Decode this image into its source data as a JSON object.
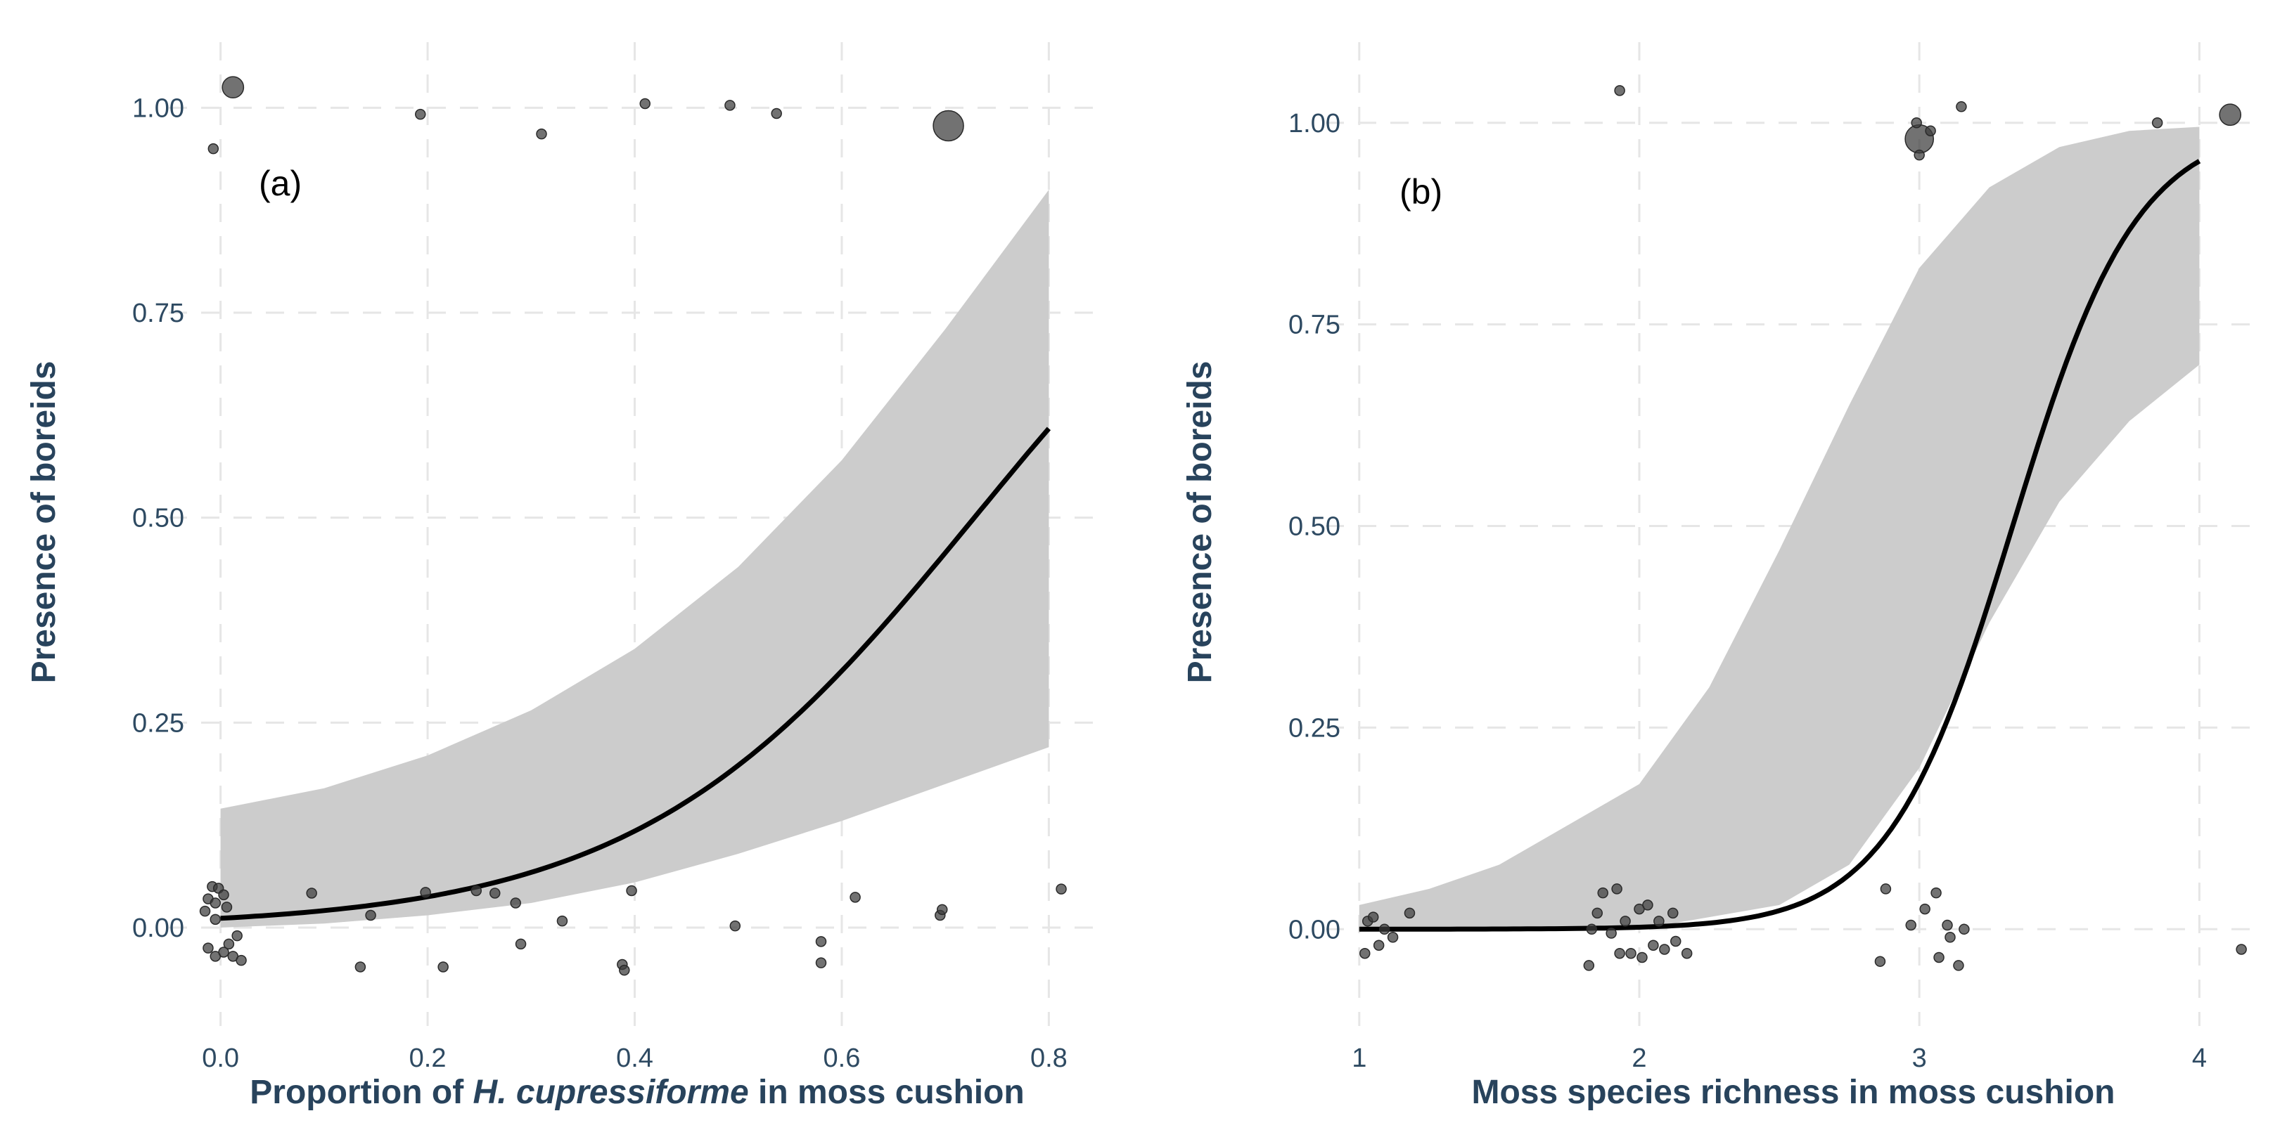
{
  "chart_data": [
    {
      "type": "scatter",
      "panel_label": "(a)",
      "title": "",
      "xlabel_prefix": "Proportion of ",
      "xlabel_species": "H. cupressiforme",
      "xlabel_suffix": " in moss cushion",
      "ylabel": "Presence of boreids",
      "xlim": [
        -0.05,
        0.85
      ],
      "ylim": [
        -0.12,
        1.08
      ],
      "x_ticks": [
        0.0,
        0.2,
        0.4,
        0.6,
        0.8
      ],
      "x_tick_labels": [
        "0.0",
        "0.2",
        "0.4",
        "0.6",
        "0.8"
      ],
      "y_ticks": [
        0,
        0.25,
        0.5,
        0.75,
        1.0
      ],
      "y_tick_labels": [
        "0.00",
        "0.25",
        "0.50",
        "0.75",
        "1.00"
      ],
      "model": "logistic",
      "fit_intercept": -4.47,
      "fit_slope": 6.14,
      "fit_range": [
        0.0,
        0.8
      ],
      "ci_lower": [
        [
          0.0,
          0.0
        ],
        [
          0.1,
          0.005
        ],
        [
          0.2,
          0.015
        ],
        [
          0.3,
          0.03
        ],
        [
          0.4,
          0.055
        ],
        [
          0.5,
          0.09
        ],
        [
          0.6,
          0.13
        ],
        [
          0.7,
          0.175
        ],
        [
          0.8,
          0.22
        ]
      ],
      "ci_upper": [
        [
          0.0,
          0.145
        ],
        [
          0.1,
          0.17
        ],
        [
          0.2,
          0.21
        ],
        [
          0.3,
          0.265
        ],
        [
          0.4,
          0.34
        ],
        [
          0.5,
          0.44
        ],
        [
          0.6,
          0.57
        ],
        [
          0.7,
          0.73
        ],
        [
          0.8,
          0.9
        ]
      ],
      "points": [
        {
          "x": 0.012,
          "y": 1.025,
          "n": 3
        },
        {
          "x": -0.007,
          "y": 0.95,
          "n": 1
        },
        {
          "x": 0.193,
          "y": 0.992,
          "n": 1
        },
        {
          "x": 0.31,
          "y": 0.968,
          "n": 1
        },
        {
          "x": 0.41,
          "y": 1.005,
          "n": 1
        },
        {
          "x": 0.492,
          "y": 1.003,
          "n": 1
        },
        {
          "x": 0.537,
          "y": 0.993,
          "n": 1
        },
        {
          "x": 0.703,
          "y": 0.978,
          "n": 7
        },
        {
          "x": -0.012,
          "y": 0.035,
          "n": 1
        },
        {
          "x": -0.008,
          "y": 0.05,
          "n": 1
        },
        {
          "x": -0.005,
          "y": 0.03,
          "n": 1
        },
        {
          "x": -0.002,
          "y": 0.048,
          "n": 1
        },
        {
          "x": -0.015,
          "y": 0.02,
          "n": 1
        },
        {
          "x": -0.005,
          "y": 0.01,
          "n": 1
        },
        {
          "x": 0.003,
          "y": 0.04,
          "n": 1
        },
        {
          "x": 0.006,
          "y": 0.025,
          "n": 1
        },
        {
          "x": -0.012,
          "y": -0.025,
          "n": 1
        },
        {
          "x": -0.005,
          "y": -0.035,
          "n": 1
        },
        {
          "x": 0.003,
          "y": -0.03,
          "n": 1
        },
        {
          "x": 0.008,
          "y": -0.02,
          "n": 1
        },
        {
          "x": 0.012,
          "y": -0.035,
          "n": 1
        },
        {
          "x": 0.016,
          "y": -0.01,
          "n": 1
        },
        {
          "x": 0.02,
          "y": -0.04,
          "n": 1
        },
        {
          "x": 0.088,
          "y": 0.042,
          "n": 1
        },
        {
          "x": 0.135,
          "y": -0.048,
          "n": 1
        },
        {
          "x": 0.145,
          "y": 0.015,
          "n": 1
        },
        {
          "x": 0.198,
          "y": 0.043,
          "n": 1
        },
        {
          "x": 0.215,
          "y": -0.048,
          "n": 1
        },
        {
          "x": 0.247,
          "y": 0.045,
          "n": 1
        },
        {
          "x": 0.265,
          "y": 0.042,
          "n": 1
        },
        {
          "x": 0.285,
          "y": 0.03,
          "n": 1
        },
        {
          "x": 0.29,
          "y": -0.02,
          "n": 1
        },
        {
          "x": 0.33,
          "y": 0.008,
          "n": 1
        },
        {
          "x": 0.388,
          "y": -0.045,
          "n": 1
        },
        {
          "x": 0.39,
          "y": -0.052,
          "n": 1
        },
        {
          "x": 0.397,
          "y": 0.045,
          "n": 1
        },
        {
          "x": 0.497,
          "y": 0.002,
          "n": 1
        },
        {
          "x": 0.58,
          "y": -0.017,
          "n": 1
        },
        {
          "x": 0.58,
          "y": -0.043,
          "n": 1
        },
        {
          "x": 0.613,
          "y": 0.037,
          "n": 1
        },
        {
          "x": 0.695,
          "y": 0.015,
          "n": 1
        },
        {
          "x": 0.697,
          "y": 0.022,
          "n": 1
        },
        {
          "x": 0.812,
          "y": 0.047,
          "n": 1
        }
      ]
    },
    {
      "type": "scatter",
      "panel_label": "(b)",
      "title": "",
      "xlabel": "Moss species richness in moss cushion",
      "ylabel": "Presence of boreids",
      "xlim": [
        0.88,
        4.22
      ],
      "ylim": [
        -0.12,
        1.1
      ],
      "x_ticks": [
        1,
        2,
        3,
        4
      ],
      "x_tick_labels": [
        "1",
        "2",
        "3",
        "4"
      ],
      "y_ticks": [
        0,
        0.25,
        0.5,
        0.75,
        1.0
      ],
      "y_tick_labels": [
        "0.00",
        "0.25",
        "0.50",
        "0.75",
        "1.00"
      ],
      "model": "logistic",
      "fit_intercept": -15.0,
      "fit_slope": 4.5,
      "fit_range": [
        1.0,
        4.0
      ],
      "ci_lower": [
        [
          1.0,
          0.0
        ],
        [
          1.5,
          0.0
        ],
        [
          2.0,
          0.0
        ],
        [
          2.5,
          0.03
        ],
        [
          2.75,
          0.08
        ],
        [
          3.0,
          0.2
        ],
        [
          3.25,
          0.38
        ],
        [
          3.5,
          0.53
        ],
        [
          3.75,
          0.63
        ],
        [
          4.0,
          0.7
        ]
      ],
      "ci_upper": [
        [
          1.0,
          0.03
        ],
        [
          1.25,
          0.05
        ],
        [
          1.5,
          0.08
        ],
        [
          2.0,
          0.18
        ],
        [
          2.25,
          0.3
        ],
        [
          2.5,
          0.47
        ],
        [
          2.75,
          0.65
        ],
        [
          3.0,
          0.82
        ],
        [
          3.25,
          0.92
        ],
        [
          3.5,
          0.97
        ],
        [
          3.75,
          0.99
        ],
        [
          4.0,
          0.995
        ]
      ],
      "points": [
        {
          "x": 1.93,
          "y": 1.04,
          "n": 1
        },
        {
          "x": 3.0,
          "y": 0.98,
          "n": 6
        },
        {
          "x": 3.0,
          "y": 0.96,
          "n": 1
        },
        {
          "x": 2.99,
          "y": 1.0,
          "n": 1
        },
        {
          "x": 3.04,
          "y": 0.99,
          "n": 1
        },
        {
          "x": 3.15,
          "y": 1.02,
          "n": 1
        },
        {
          "x": 3.85,
          "y": 1.0,
          "n": 1
        },
        {
          "x": 4.11,
          "y": 1.01,
          "n": 3
        },
        {
          "x": 1.02,
          "y": -0.03,
          "n": 1
        },
        {
          "x": 1.03,
          "y": 0.01,
          "n": 1
        },
        {
          "x": 1.05,
          "y": 0.015,
          "n": 1
        },
        {
          "x": 1.07,
          "y": -0.02,
          "n": 1
        },
        {
          "x": 1.09,
          "y": 0.0,
          "n": 1
        },
        {
          "x": 1.12,
          "y": -0.01,
          "n": 1
        },
        {
          "x": 1.18,
          "y": 0.02,
          "n": 1
        },
        {
          "x": 1.82,
          "y": -0.045,
          "n": 1
        },
        {
          "x": 1.83,
          "y": 0.0,
          "n": 1
        },
        {
          "x": 1.85,
          "y": 0.02,
          "n": 1
        },
        {
          "x": 1.87,
          "y": 0.045,
          "n": 1
        },
        {
          "x": 1.9,
          "y": -0.005,
          "n": 1
        },
        {
          "x": 1.92,
          "y": 0.05,
          "n": 1
        },
        {
          "x": 1.93,
          "y": -0.03,
          "n": 1
        },
        {
          "x": 1.95,
          "y": 0.01,
          "n": 1
        },
        {
          "x": 1.97,
          "y": -0.03,
          "n": 1
        },
        {
          "x": 2.0,
          "y": 0.025,
          "n": 1
        },
        {
          "x": 2.01,
          "y": -0.035,
          "n": 1
        },
        {
          "x": 2.03,
          "y": 0.03,
          "n": 1
        },
        {
          "x": 2.05,
          "y": -0.02,
          "n": 1
        },
        {
          "x": 2.07,
          "y": 0.01,
          "n": 1
        },
        {
          "x": 2.09,
          "y": -0.025,
          "n": 1
        },
        {
          "x": 2.12,
          "y": 0.02,
          "n": 1
        },
        {
          "x": 2.13,
          "y": -0.015,
          "n": 1
        },
        {
          "x": 2.17,
          "y": -0.03,
          "n": 1
        },
        {
          "x": 2.86,
          "y": -0.04,
          "n": 1
        },
        {
          "x": 2.88,
          "y": 0.05,
          "n": 1
        },
        {
          "x": 2.97,
          "y": 0.005,
          "n": 1
        },
        {
          "x": 3.02,
          "y": 0.025,
          "n": 1
        },
        {
          "x": 3.06,
          "y": 0.045,
          "n": 1
        },
        {
          "x": 3.07,
          "y": -0.035,
          "n": 1
        },
        {
          "x": 3.1,
          "y": 0.005,
          "n": 1
        },
        {
          "x": 3.11,
          "y": -0.01,
          "n": 1
        },
        {
          "x": 3.14,
          "y": -0.045,
          "n": 1
        },
        {
          "x": 3.16,
          "y": 0.0,
          "n": 1
        },
        {
          "x": 4.15,
          "y": -0.025,
          "n": 1
        }
      ]
    }
  ]
}
